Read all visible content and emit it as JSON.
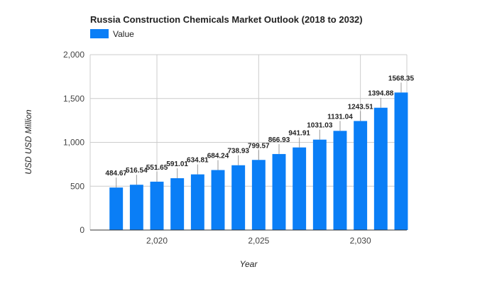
{
  "chart_data": {
    "type": "bar",
    "title": "Russia Construction Chemicals Market Outlook (2018 to 2032)",
    "xlabel": "Year",
    "ylabel": "USD USD Million",
    "legend": {
      "position": "top-left",
      "entries": [
        "Value"
      ]
    },
    "grid": true,
    "categories": [
      2018,
      2019,
      2020,
      2021,
      2022,
      2023,
      2024,
      2025,
      2026,
      2027,
      2028,
      2029,
      2030,
      2031,
      2032
    ],
    "series": [
      {
        "name": "Value",
        "values": [
          484.67,
          516.54,
          551.65,
          591.01,
          634.81,
          684.24,
          738.93,
          799.57,
          866.93,
          941.91,
          1031.03,
          1131.04,
          1243.51,
          1394.88,
          1568.35
        ]
      }
    ],
    "data_labels": [
      "484.67",
      "516.54",
      "551.65",
      "591.01",
      "634.81",
      "684.24",
      "738.93",
      "799.57",
      "866.93",
      "941.91",
      "1031.03",
      "1131.04",
      "1243.51",
      "1394.88",
      "1568.35"
    ],
    "ylim": [
      0,
      2000
    ],
    "yticks": [
      0,
      500,
      1000,
      1500,
      2000
    ],
    "ytick_labels": [
      "0",
      "500",
      "1,000",
      "1,500",
      "2,000"
    ],
    "xlim": [
      2016.72,
      2032.28
    ],
    "xticks": [
      2020,
      2025,
      2030
    ],
    "xtick_labels": [
      "2,020",
      "2,025",
      "2,030"
    ],
    "colors": {
      "bar": "#0a7ef6",
      "grid": "#cccccc",
      "axis": "#333333",
      "leader": "#999999"
    }
  }
}
